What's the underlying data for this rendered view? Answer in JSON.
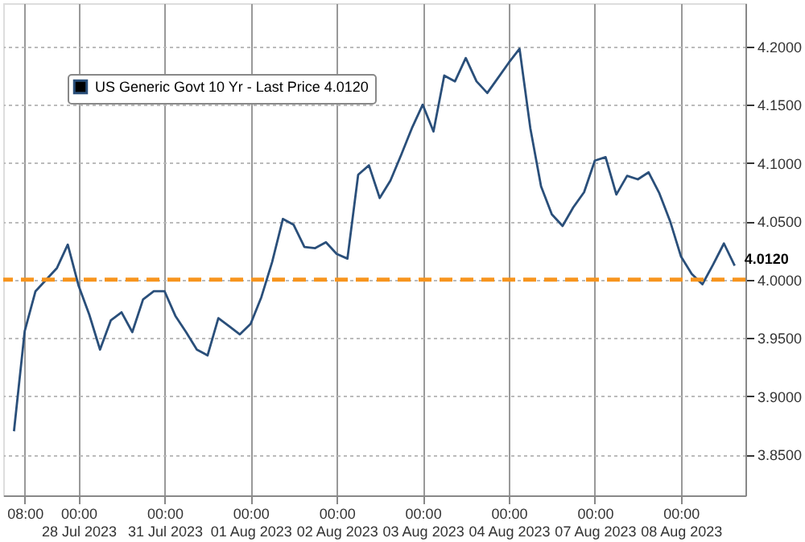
{
  "chart_data": {
    "type": "line",
    "categories": [
      null,
      "08:00",
      null,
      null,
      null,
      null,
      "00:00\n28 Jul 2023",
      null,
      null,
      null,
      null,
      null,
      null,
      null,
      "00:00\n31 Jul 2023",
      null,
      null,
      null,
      null,
      null,
      null,
      null,
      "00:00\n01 Aug 2023",
      null,
      null,
      null,
      null,
      null,
      null,
      null,
      "00:00\n02 Aug 2023",
      null,
      null,
      null,
      null,
      null,
      null,
      null,
      "00:00\n03 Aug 2023",
      null,
      null,
      null,
      null,
      null,
      null,
      null,
      "00:00\n04 Aug 2023",
      null,
      null,
      null,
      null,
      null,
      null,
      null,
      "00:00\n07 Aug 2023",
      null,
      null,
      null,
      null,
      null,
      null,
      null,
      "00:00\n08 Aug 2023",
      null,
      null,
      null,
      null,
      null
    ],
    "series": [
      {
        "name": "US Generic Govt 10 Yr - Last Price 4.0120",
        "color": "#2a4f7a",
        "values": [
          3.87,
          3.956,
          3.99,
          4.0,
          4.01,
          4.03,
          3.995,
          3.97,
          3.94,
          3.965,
          3.972,
          3.955,
          3.983,
          3.99,
          3.99,
          3.969,
          3.955,
          3.94,
          3.935,
          3.967,
          3.96,
          3.953,
          3.962,
          3.985,
          4.015,
          4.052,
          4.047,
          4.028,
          4.027,
          4.032,
          4.022,
          4.018,
          4.09,
          4.098,
          4.07,
          4.085,
          4.107,
          4.13,
          4.15,
          4.127,
          4.175,
          4.17,
          4.19,
          4.17,
          4.16,
          4.173,
          4.186,
          4.198,
          4.13,
          4.08,
          4.056,
          4.046,
          4.062,
          4.075,
          4.102,
          4.105,
          4.073,
          4.089,
          4.086,
          4.092,
          4.074,
          4.05,
          4.02,
          4.005,
          3.996,
          4.013,
          4.031,
          4.012
        ],
        "value_labels": [
          null,
          null,
          null,
          null,
          null,
          null,
          null,
          null,
          null,
          null,
          null,
          null,
          null,
          null,
          null,
          null,
          null,
          null,
          null,
          null,
          null,
          null,
          null,
          null,
          null,
          null,
          null,
          null,
          null,
          null,
          null,
          null,
          null,
          null,
          null,
          null,
          null,
          null,
          null,
          null,
          null,
          null,
          null,
          null,
          null,
          null,
          null,
          null,
          null,
          null,
          null,
          null,
          null,
          null,
          null,
          null,
          null,
          null,
          null,
          null,
          null,
          null,
          null,
          null,
          null,
          null,
          null,
          "4.0120"
        ]
      }
    ],
    "ylim": [
      3.815,
      4.237
    ],
    "yticks": [
      {
        "value": 3.85,
        "label": "3.8500"
      },
      {
        "value": 3.9,
        "label": "3.9000"
      },
      {
        "value": 3.95,
        "label": "3.9500"
      },
      {
        "value": 4.0,
        "label": "4.0000"
      },
      {
        "value": 4.05,
        "label": "4.0500"
      },
      {
        "value": 4.1,
        "label": "4.1000"
      },
      {
        "value": 4.15,
        "label": "4.1500"
      },
      {
        "value": 4.2,
        "label": "4.2000"
      }
    ],
    "ref_lines": [
      {
        "axis": "y",
        "value": 4.0,
        "color": "#f7941d",
        "line_style": "dashed"
      }
    ],
    "grid": true,
    "legend": "top left",
    "marker": "none",
    "line_style": "solid"
  }
}
